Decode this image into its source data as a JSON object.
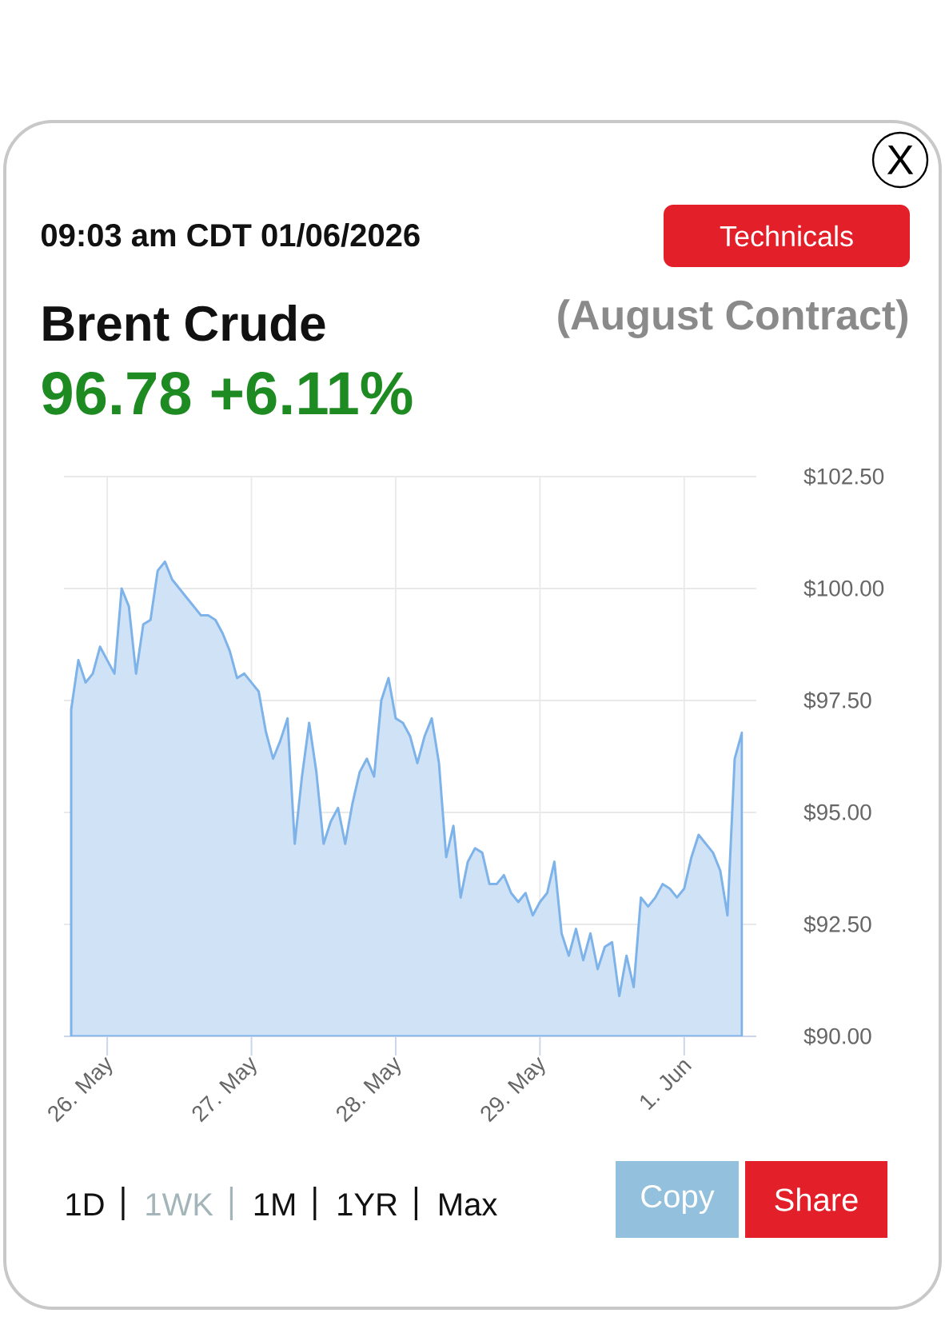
{
  "chart_data": {
    "type": "area",
    "title": "Brent Crude",
    "subtitle": "(August Contract)",
    "annotations": [
      "09:03 am CDT 01/06/2026",
      "96.78 +6.11%",
      "Technicals",
      "1D",
      "1WK",
      "1M",
      "1YR",
      "Max",
      "Copy",
      "Share",
      "X"
    ],
    "categories": [
      null,
      null,
      null,
      null,
      null,
      "26. May",
      null,
      null,
      null,
      null,
      null,
      null,
      null,
      null,
      null,
      null,
      null,
      null,
      null,
      null,
      null,
      null,
      null,
      null,
      null,
      "27. May",
      null,
      null,
      null,
      null,
      null,
      null,
      null,
      null,
      null,
      null,
      null,
      null,
      null,
      null,
      null,
      null,
      null,
      null,
      null,
      "28. May",
      null,
      null,
      null,
      null,
      null,
      null,
      null,
      null,
      null,
      null,
      null,
      null,
      null,
      null,
      null,
      null,
      null,
      null,
      null,
      "29. May",
      null,
      null,
      null,
      null,
      null,
      null,
      null,
      null,
      null,
      null,
      null,
      null,
      null,
      null,
      null,
      null,
      null,
      null,
      null,
      "1. Jun",
      null,
      null,
      null,
      null,
      null,
      null,
      null,
      null
    ],
    "values": [
      97.3,
      98.4,
      97.9,
      98.1,
      98.7,
      98.4,
      98.1,
      100.0,
      99.6,
      98.1,
      99.2,
      99.3,
      100.4,
      100.6,
      100.2,
      100.0,
      99.8,
      99.6,
      99.4,
      99.4,
      99.3,
      99.0,
      98.6,
      98.0,
      98.1,
      97.9,
      97.7,
      96.8,
      96.2,
      96.6,
      97.1,
      94.3,
      95.8,
      97.0,
      95.9,
      94.3,
      94.8,
      95.1,
      94.3,
      95.2,
      95.9,
      96.2,
      95.8,
      97.5,
      98.0,
      97.1,
      97.0,
      96.7,
      96.1,
      96.7,
      97.1,
      96.1,
      94.0,
      94.7,
      93.1,
      93.9,
      94.2,
      94.1,
      93.4,
      93.4,
      93.6,
      93.2,
      93.0,
      93.2,
      92.7,
      93.0,
      93.2,
      93.9,
      92.3,
      91.8,
      92.4,
      91.7,
      92.3,
      91.5,
      92.0,
      92.1,
      90.9,
      91.8,
      91.1,
      93.1,
      92.9,
      93.1,
      93.4,
      93.3,
      93.1,
      93.3,
      94.0,
      94.5,
      94.3,
      94.1,
      93.7,
      92.7,
      96.2,
      96.78
    ],
    "color": "#cfe2f6",
    "ylim": [
      90,
      102.5
    ],
    "yticks": [
      {
        "value": 90,
        "label": "$90.00"
      },
      {
        "value": 92.5,
        "label": "$92.50"
      },
      {
        "value": 95,
        "label": "$95.00"
      },
      {
        "value": 97.5,
        "label": "$97.50"
      },
      {
        "value": 100,
        "label": "$100.00"
      },
      {
        "value": 102.5,
        "label": "$102.50"
      }
    ],
    "grid": true
  }
}
